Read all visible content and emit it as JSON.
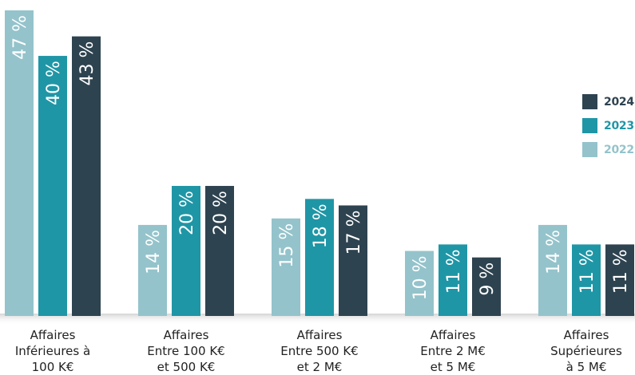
{
  "chart_data": {
    "type": "bar",
    "categories": [
      "Affaires\nInférieures à\n100 K€",
      "Affaires\nEntre 100 K€\net 500 K€",
      "Affaires\nEntre 500 K€\net 2 M€",
      "Affaires\nEntre 2 M€\net 5 M€",
      "Affaires\nSupérieures\nà 5 M€"
    ],
    "series": [
      {
        "name": "2022",
        "values": [
          47,
          14,
          15,
          10,
          14
        ],
        "labels": [
          "47 %",
          "14 %",
          "15 %",
          "10 %",
          "14 %"
        ],
        "color": "#94c3cb"
      },
      {
        "name": "2023",
        "values": [
          40,
          20,
          18,
          11,
          11
        ],
        "labels": [
          "40 %",
          "20 %",
          "18 %",
          "11 %",
          "11 %"
        ],
        "color": "#1f96a6"
      },
      {
        "name": "2024",
        "values": [
          43,
          20,
          17,
          9,
          11
        ],
        "labels": [
          "43 %",
          "20 %",
          "17 %",
          "9 %",
          "11 %"
        ],
        "color": "#2e4350"
      }
    ],
    "ylim": [
      0,
      47
    ],
    "grid": false,
    "legend_position": "right",
    "legend_order": [
      "2024",
      "2023",
      "2022"
    ],
    "axis_label_color": "#222222",
    "data_label_color": "#ffffff"
  }
}
